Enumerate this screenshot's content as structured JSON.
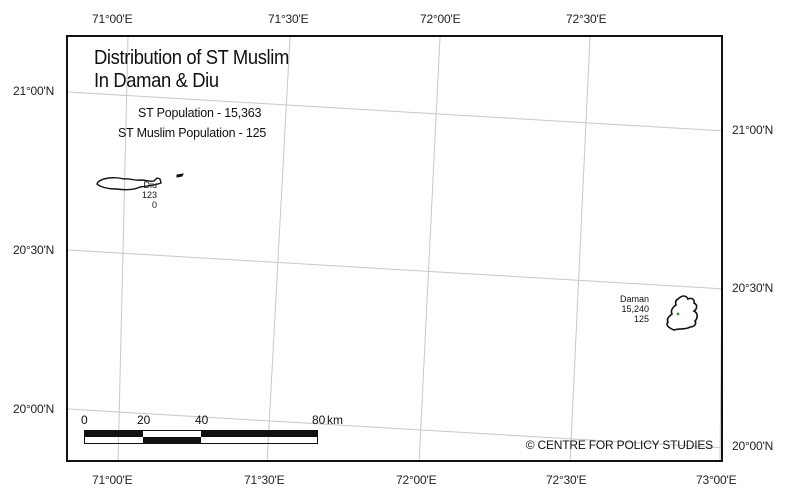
{
  "map": {
    "title_line1": "Distribution of ST Muslim",
    "title_line2": "In Daman & Diu",
    "st_population": "ST Population - 15,363",
    "st_muslim_population": "ST Muslim Population - 125",
    "credit": "© CENTRE FOR POLICY STUDIES"
  },
  "places": [
    {
      "name": "Diu",
      "total": "123",
      "muslim": "0"
    },
    {
      "name": "Daman",
      "total": "15,240",
      "muslim": "125"
    }
  ],
  "graticule": {
    "top_longitudes": [
      "71°00'E",
      "71°30'E",
      "72°00'E",
      "72°30'E"
    ],
    "bottom_longitudes": [
      "71°00'E",
      "71°30'E",
      "72°00'E",
      "72°30'E",
      "73°00'E"
    ],
    "left_latitudes": [
      "21°00'N",
      "20°30'N",
      "20°00'N"
    ],
    "right_latitudes": [
      "21°00'N",
      "20°30'N",
      "20°00'N"
    ]
  },
  "scale_bar": {
    "labels": [
      "0",
      "20",
      "40",
      "80"
    ],
    "unit": "km"
  },
  "colors": {
    "frame": "#111111",
    "grid": "#c8c8c8",
    "land_outline": "#111111",
    "dot": "#3a8a3a"
  }
}
